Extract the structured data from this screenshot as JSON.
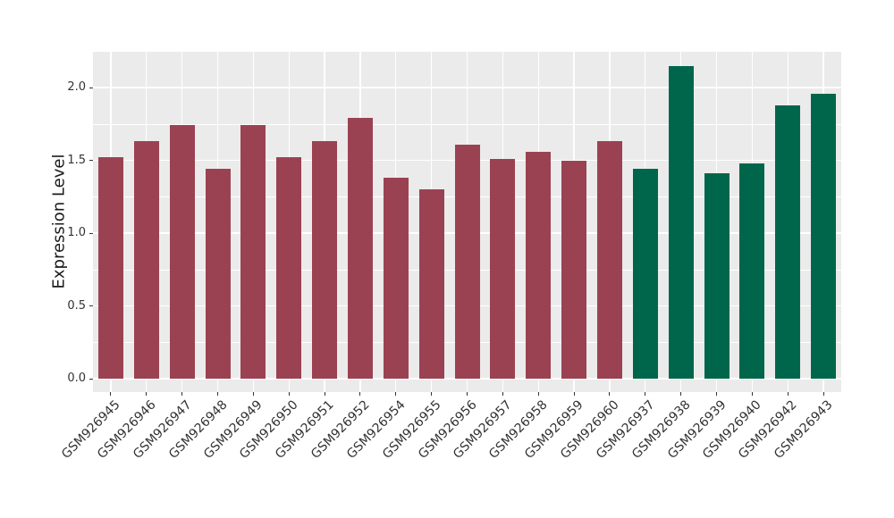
{
  "chart_data": {
    "type": "bar",
    "title": "",
    "xlabel": "",
    "ylabel": "Expression Level",
    "legend": "none",
    "grid": true,
    "ylim": [
      0,
      2.25
    ],
    "ytick_labels": [
      "0.0",
      "0.5",
      "1.0",
      "1.5",
      "2.0"
    ],
    "yticks": [
      0,
      0.5,
      1,
      1.5,
      2
    ],
    "categories": [
      "GSM926945",
      "GSM926946",
      "GSM926947",
      "GSM926948",
      "GSM926949",
      "GSM926950",
      "GSM926951",
      "GSM926952",
      "GSM926954",
      "GSM926955",
      "GSM926956",
      "GSM926957",
      "GSM926958",
      "GSM926959",
      "GSM926960",
      "GSM926937",
      "GSM926938",
      "GSM926939",
      "GSM926940",
      "GSM926942",
      "GSM926943"
    ],
    "values": [
      1.52,
      1.63,
      1.74,
      1.44,
      1.74,
      1.52,
      1.63,
      1.79,
      1.38,
      1.3,
      1.61,
      1.51,
      1.56,
      1.5,
      1.63,
      1.44,
      2.15,
      1.41,
      1.48,
      1.88,
      1.96
    ],
    "bars": [
      {
        "label": "GSM926945",
        "value": 1.52,
        "group": "maroon"
      },
      {
        "label": "GSM926946",
        "value": 1.63,
        "group": "maroon"
      },
      {
        "label": "GSM926947",
        "value": 1.74,
        "group": "maroon"
      },
      {
        "label": "GSM926948",
        "value": 1.44,
        "group": "maroon"
      },
      {
        "label": "GSM926949",
        "value": 1.74,
        "group": "maroon"
      },
      {
        "label": "GSM926950",
        "value": 1.52,
        "group": "maroon"
      },
      {
        "label": "GSM926951",
        "value": 1.63,
        "group": "maroon"
      },
      {
        "label": "GSM926952",
        "value": 1.79,
        "group": "maroon"
      },
      {
        "label": "GSM926954",
        "value": 1.38,
        "group": "maroon"
      },
      {
        "label": "GSM926955",
        "value": 1.3,
        "group": "maroon"
      },
      {
        "label": "GSM926956",
        "value": 1.61,
        "group": "maroon"
      },
      {
        "label": "GSM926957",
        "value": 1.51,
        "group": "maroon"
      },
      {
        "label": "GSM926958",
        "value": 1.56,
        "group": "maroon"
      },
      {
        "label": "GSM926959",
        "value": 1.5,
        "group": "maroon"
      },
      {
        "label": "GSM926960",
        "value": 1.63,
        "group": "maroon"
      },
      {
        "label": "GSM926937",
        "value": 1.44,
        "group": "green"
      },
      {
        "label": "GSM926938",
        "value": 2.15,
        "group": "green"
      },
      {
        "label": "GSM926939",
        "value": 1.41,
        "group": "green"
      },
      {
        "label": "GSM926940",
        "value": 1.48,
        "group": "green"
      },
      {
        "label": "GSM926942",
        "value": 1.88,
        "group": "green"
      },
      {
        "label": "GSM926943",
        "value": 1.96,
        "group": "green"
      }
    ],
    "style": {
      "figure_background": "#FFFFFF",
      "panel_background": "#EBEBEB",
      "grid_color": "#FFFFFF",
      "tick_color": "#333333",
      "tick_label_color": "#333333",
      "axis_title_color": "#1A1A1A",
      "group_colors": {
        "maroon": "#9B4252",
        "green": "#00664B"
      }
    }
  }
}
